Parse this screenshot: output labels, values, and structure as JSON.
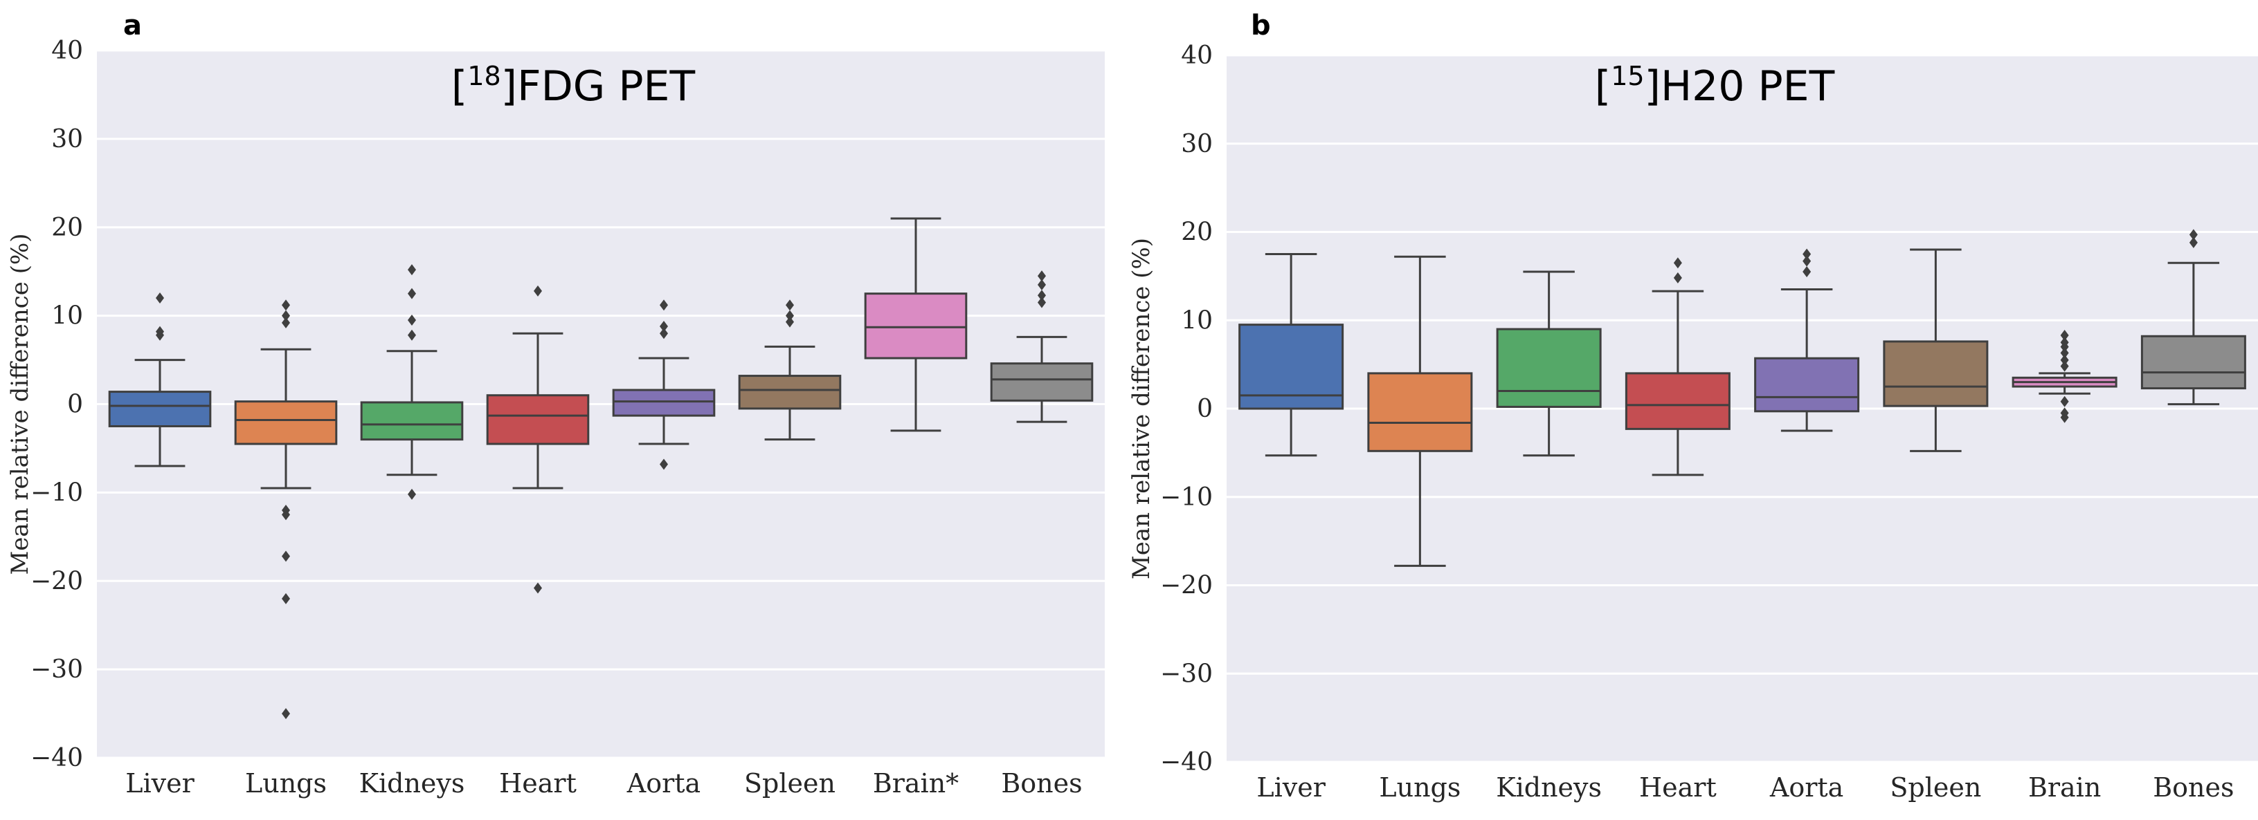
{
  "chart_data": [
    {
      "type": "box",
      "panel_letter": "a",
      "title_parts": {
        "pre": "[",
        "sup": "18",
        "post": "]FDG PET"
      },
      "xlabel": "",
      "ylabel": "Mean relative difference (%)",
      "ylim": [
        -40,
        40
      ],
      "yticks": [
        40,
        30,
        20,
        10,
        0,
        -10,
        -20,
        -30,
        -40
      ],
      "ytick_labels": [
        "40",
        "30",
        "20",
        "10",
        "0",
        "−10",
        "−20",
        "−30",
        "−40"
      ],
      "grid": true,
      "categories": [
        "Liver",
        "Lungs",
        "Kidneys",
        "Heart",
        "Aorta",
        "Spleen",
        "Brain*",
        "Bones"
      ],
      "series": [
        {
          "name": "Liver",
          "color": "#4c72b0",
          "whislo": -7,
          "q1": -2.5,
          "med": -0.2,
          "q3": 1.4,
          "whishi": 5,
          "fliers": [
            7.8,
            8.2,
            12
          ]
        },
        {
          "name": "Lungs",
          "color": "#dd8452",
          "whislo": -9.5,
          "q1": -4.5,
          "med": -1.8,
          "q3": 0.3,
          "whishi": 6.2,
          "fliers": [
            9.2,
            10,
            11.2,
            -12,
            -12.5,
            -17.2,
            -22,
            -35
          ]
        },
        {
          "name": "Kidneys",
          "color": "#55a868",
          "whislo": -8,
          "q1": -4,
          "med": -2.3,
          "q3": 0.2,
          "whishi": 6,
          "fliers": [
            7.8,
            9.5,
            12.5,
            15.2,
            -10.2
          ]
        },
        {
          "name": "Heart",
          "color": "#c44e52",
          "whislo": -9.5,
          "q1": -4.5,
          "med": -1.3,
          "q3": 1,
          "whishi": 8,
          "fliers": [
            12.8,
            -20.8
          ]
        },
        {
          "name": "Aorta",
          "color": "#8172b3",
          "whislo": -4.5,
          "q1": -1.3,
          "med": 0.3,
          "q3": 1.6,
          "whishi": 5.2,
          "fliers": [
            8,
            8.8,
            11.2,
            -6.8
          ]
        },
        {
          "name": "Spleen",
          "color": "#937860",
          "whislo": -4,
          "q1": -0.5,
          "med": 1.6,
          "q3": 3.2,
          "whishi": 6.5,
          "fliers": [
            9.3,
            10,
            11.2
          ]
        },
        {
          "name": "Brain*",
          "color": "#da8bc3",
          "whislo": -3,
          "q1": 5.2,
          "med": 8.7,
          "q3": 12.5,
          "whishi": 21,
          "fliers": []
        },
        {
          "name": "Bones",
          "color": "#8c8c8c",
          "whislo": -2,
          "q1": 0.4,
          "med": 2.8,
          "q3": 4.6,
          "whishi": 7.6,
          "fliers": [
            11.5,
            12.3,
            13.5,
            14.5
          ]
        }
      ]
    },
    {
      "type": "box",
      "panel_letter": "b",
      "title_parts": {
        "pre": "[",
        "sup": "15",
        "post": "]H20 PET"
      },
      "xlabel": "",
      "ylabel": "Mean relative difference (%)",
      "ylim": [
        -40,
        40
      ],
      "yticks": [
        40,
        30,
        20,
        10,
        0,
        -10,
        -20,
        -30,
        -40
      ],
      "ytick_labels": [
        "40",
        "30",
        "20",
        "10",
        "0",
        "−10",
        "−20",
        "−30",
        "−40"
      ],
      "grid": true,
      "categories": [
        "Liver",
        "Lungs",
        "Kidneys",
        "Heart",
        "Aorta",
        "Spleen",
        "Brain",
        "Bones"
      ],
      "series": [
        {
          "name": "Liver",
          "color": "#4c72b0",
          "whislo": -5.3,
          "q1": 0,
          "med": 1.5,
          "q3": 9.5,
          "whishi": 17.5,
          "fliers": []
        },
        {
          "name": "Lungs",
          "color": "#dd8452",
          "whislo": -17.8,
          "q1": -4.8,
          "med": -1.6,
          "q3": 4,
          "whishi": 17.2,
          "fliers": []
        },
        {
          "name": "Kidneys",
          "color": "#55a868",
          "whislo": -5.3,
          "q1": 0.2,
          "med": 2,
          "q3": 9,
          "whishi": 15.5,
          "fliers": []
        },
        {
          "name": "Heart",
          "color": "#c44e52",
          "whislo": -7.5,
          "q1": -2.3,
          "med": 0.4,
          "q3": 4,
          "whishi": 13.3,
          "fliers": [
            14.8,
            16.5
          ]
        },
        {
          "name": "Aorta",
          "color": "#8172b3",
          "whislo": -2.5,
          "q1": -0.3,
          "med": 1.3,
          "q3": 5.7,
          "whishi": 13.5,
          "fliers": [
            15.5,
            16.7,
            17.5
          ]
        },
        {
          "name": "Spleen",
          "color": "#937860",
          "whislo": -4.8,
          "q1": 0.3,
          "med": 2.5,
          "q3": 7.6,
          "whishi": 18,
          "fliers": []
        },
        {
          "name": "Brain",
          "color": "#da8bc3",
          "whislo": 1.7,
          "q1": 2.5,
          "med": 3,
          "q3": 3.5,
          "whishi": 4,
          "fliers": [
            4.8,
            5.5,
            6.3,
            7,
            7.5,
            8.3,
            -0.5,
            -1,
            0.8
          ]
        },
        {
          "name": "Bones",
          "color": "#8c8c8c",
          "whislo": 0.5,
          "q1": 2.3,
          "med": 4.1,
          "q3": 8.2,
          "whishi": 16.5,
          "fliers": [
            18.8,
            19.7
          ]
        }
      ]
    }
  ]
}
